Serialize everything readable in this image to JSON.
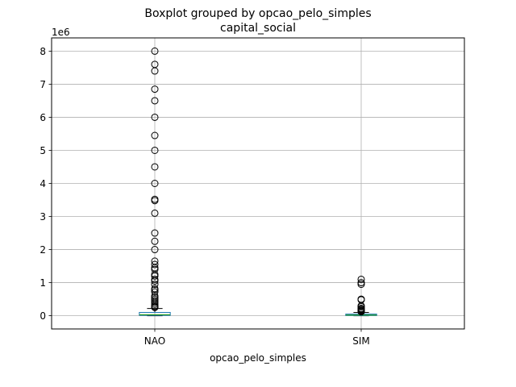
{
  "chart_data": {
    "type": "boxplot",
    "suptitle": "Boxplot grouped by opcao_pelo_simples",
    "title": "capital_social",
    "xlabel": "opcao_pelo_simples",
    "ylabel": "",
    "offset_label": "1e6",
    "y_unit": "1e6",
    "ylim": [
      -0.4,
      8.4
    ],
    "yticks": [
      0,
      1,
      2,
      3,
      4,
      5,
      6,
      7,
      8
    ],
    "categories": [
      "NAO",
      "SIM"
    ],
    "grid": true,
    "boxes": [
      {
        "category": "NAO",
        "whisker_low": 0,
        "q1": 0.01,
        "median": 0.03,
        "q3": 0.1,
        "whisker_high": 0.22,
        "outliers": [
          8.0,
          7.6,
          7.4,
          6.85,
          6.5,
          6.0,
          5.45,
          5.0,
          4.5,
          4.0,
          3.52,
          3.48,
          3.1,
          2.5,
          2.25,
          2.0,
          1.65,
          1.55,
          1.45,
          1.4,
          1.25,
          1.2,
          1.1,
          1.05,
          0.95,
          0.82,
          0.78,
          0.72,
          0.6,
          0.55,
          0.5,
          0.45,
          0.4,
          0.35,
          0.3,
          0.27,
          0.25
        ]
      },
      {
        "category": "SIM",
        "whisker_low": 0,
        "q1": 0.005,
        "median": 0.02,
        "q3": 0.05,
        "whisker_high": 0.1,
        "outliers": [
          1.1,
          1.0,
          0.95,
          0.5,
          0.48,
          0.3,
          0.27,
          0.22,
          0.2,
          0.17,
          0.15,
          0.13,
          0.12
        ]
      }
    ],
    "colors": {
      "box": "#1f77b4",
      "median": "#2ca02c",
      "whisker": "#000000",
      "grid": "#b0b0b0",
      "outlier_edge": "#000000"
    }
  }
}
